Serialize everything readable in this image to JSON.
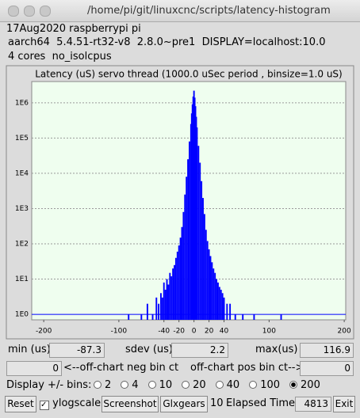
{
  "window_title": "/home/pi/git/linuxcnc/scripts/latency-histogram",
  "info": [
    "17Aug2020 raspberrypi pi",
    "aarch64  5.4.51-rt32-v8  2.8.0~pre1  DISPLAY=localhost:10.0",
    "4 cores  no_isolcpus"
  ],
  "chart_data": {
    "type": "bar",
    "title": "Latency (uS) servo thread (1000.0 uSec period , binsize=1.0 uS)",
    "x": [
      -87,
      -70,
      -62,
      -55,
      -50,
      -47,
      -44,
      -42,
      -40,
      -38,
      -36,
      -34,
      -32,
      -30,
      -28,
      -26,
      -24,
      -22,
      -20,
      -18,
      -16,
      -14,
      -12,
      -10,
      -8,
      -6,
      -4,
      -3,
      -2,
      -1,
      0,
      1,
      2,
      3,
      4,
      6,
      8,
      10,
      12,
      14,
      16,
      18,
      20,
      22,
      24,
      26,
      28,
      30,
      32,
      34,
      36,
      38,
      40,
      44,
      48,
      55,
      65,
      80,
      116
    ],
    "values": [
      1,
      1,
      2,
      1,
      3,
      2,
      4,
      3,
      8,
      5,
      10,
      7,
      15,
      12,
      20,
      25,
      40,
      60,
      90,
      150,
      300,
      800,
      2500,
      8000,
      25000,
      80000,
      250000,
      500000,
      900000,
      1500000,
      2200000,
      1400000,
      800000,
      400000,
      200000,
      60000,
      20000,
      6000,
      2000,
      700,
      250,
      120,
      70,
      45,
      30,
      20,
      15,
      10,
      8,
      6,
      5,
      4,
      3,
      2,
      2,
      1,
      1,
      1,
      1
    ],
    "color": "#0000ff",
    "xlim": [
      -216,
      202
    ],
    "xticks": [
      -200,
      -100,
      -40,
      -20,
      0,
      20,
      40,
      100,
      200
    ],
    "ylim": [
      0.7,
      4000000
    ],
    "ylog": true,
    "yticks": [
      {
        "value": 1,
        "label": "1E0"
      },
      {
        "value": 10,
        "label": "1E1"
      },
      {
        "value": 100,
        "label": "1E2"
      },
      {
        "value": 1000,
        "label": "1E3"
      },
      {
        "value": 10000,
        "label": "1E4"
      },
      {
        "value": 100000,
        "label": "1E5"
      },
      {
        "value": 1000000,
        "label": "1E6"
      }
    ],
    "grid": true
  },
  "stats": {
    "min_label": "min (us)",
    "min": -87.3,
    "sdev_label": "sdev (us):",
    "sdev": 2.2,
    "max_label": "max(us)",
    "max": 116.9
  },
  "offchart": {
    "neg": 0,
    "neg_label": "<--off-chart neg bin ct",
    "pos_label": "off-chart pos bin ct-->",
    "pos": 0
  },
  "bins": {
    "label": "Display +/- bins:",
    "options": [
      2,
      4,
      10,
      20,
      40,
      100,
      200
    ]
  },
  "buttons": {
    "reset": "Reset",
    "ylog": "ylogscale",
    "screenshot": "Screenshot",
    "glxgears": "Glxgears",
    "glx_count": 10,
    "elapsed_label": "Elapsed Time:",
    "elapsed": 4813,
    "exit": "Exit"
  }
}
